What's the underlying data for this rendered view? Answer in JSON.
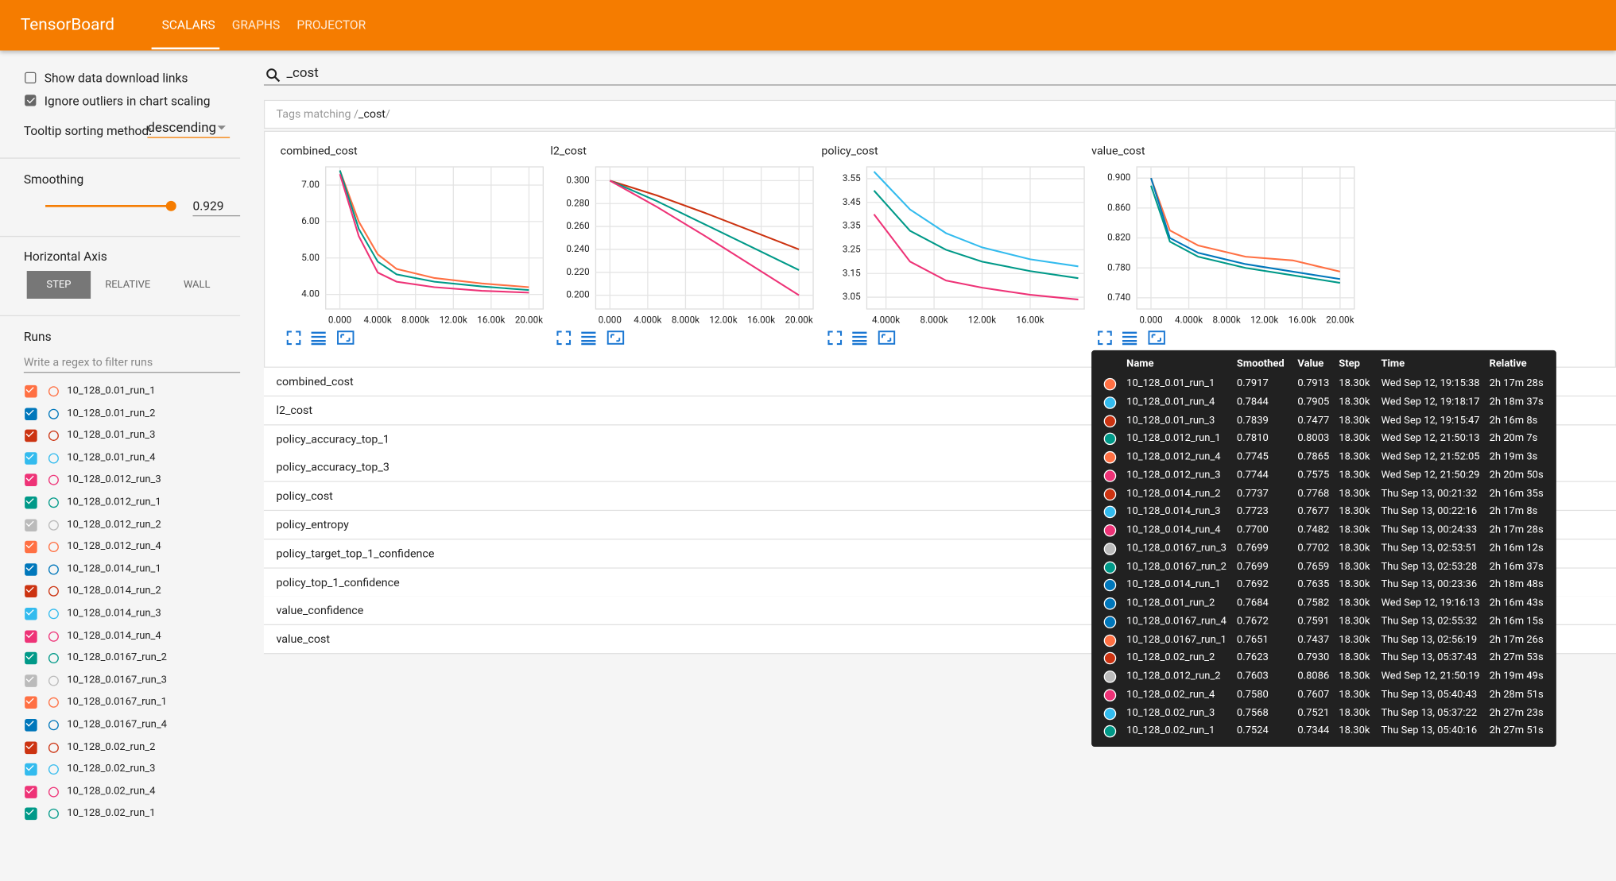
{
  "header": {
    "title": "TensorBoard",
    "tabs": [
      "SCALARS",
      "GRAPHS",
      "PROJECTOR"
    ]
  },
  "sidebar": {
    "checkboxes": [
      {
        "label": "Show data download links",
        "checked": false
      },
      {
        "label": "Ignore outliers in chart scaling",
        "checked": true
      }
    ],
    "tooltip_sorting_label": "Tooltip sorting method:",
    "tooltip_sorting_value": "descending",
    "smoothing_label": "Smoothing",
    "smoothing_value": 0.929,
    "horizontal_axis_label": "Horizontal Axis",
    "horizontal_axis_options": [
      "STEP",
      "RELATIVE",
      "WALL"
    ],
    "runs_label": "Runs",
    "runs_filter_placeholder": "Write a regex to filter runs",
    "runs": [
      {
        "name": "10_128_0.01_run_1",
        "color": "#ff7043"
      },
      {
        "name": "10_128_0.01_run_2",
        "color": "#0077bb"
      },
      {
        "name": "10_128_0.01_run_3",
        "color": "#cc3311"
      },
      {
        "name": "10_128_0.01_run_4",
        "color": "#33bbee"
      },
      {
        "name": "10_128_0.012_run_3",
        "color": "#ee3377"
      },
      {
        "name": "10_128_0.012_run_1",
        "color": "#009988"
      },
      {
        "name": "10_128_0.012_run_2",
        "color": "#bbbbbb"
      },
      {
        "name": "10_128_0.012_run_4",
        "color": "#ff7043"
      },
      {
        "name": "10_128_0.014_run_1",
        "color": "#0077bb"
      },
      {
        "name": "10_128_0.014_run_2",
        "color": "#cc3311"
      },
      {
        "name": "10_128_0.014_run_3",
        "color": "#33bbee"
      },
      {
        "name": "10_128_0.014_run_4",
        "color": "#ee3377"
      },
      {
        "name": "10_128_0.0167_run_2",
        "color": "#009988"
      },
      {
        "name": "10_128_0.0167_run_3",
        "color": "#bbbbbb"
      },
      {
        "name": "10_128_0.0167_run_1",
        "color": "#ff7043"
      },
      {
        "name": "10_128_0.0167_run_4",
        "color": "#0077bb"
      },
      {
        "name": "10_128_0.02_run_2",
        "color": "#cc3311"
      },
      {
        "name": "10_128_0.02_run_3",
        "color": "#33bbee"
      },
      {
        "name": "10_128_0.02_run_4",
        "color": "#ee3377"
      },
      {
        "name": "10_128_0.02_run_1",
        "color": "#009988"
      }
    ]
  },
  "search": {
    "query": "_cost"
  },
  "tags_matching": {
    "prefix": "Tags matching /",
    "query": "_cost",
    "suffix": "/"
  },
  "charts": [
    {
      "title": "combined_cost",
      "xlim": [
        -1500,
        21500
      ],
      "ylim": [
        3.6,
        7.5
      ],
      "xticks": [
        {
          "value": 0,
          "label": "0.000"
        },
        {
          "value": 4000,
          "label": "4.000k"
        },
        {
          "value": 8000,
          "label": "8.000k"
        },
        {
          "value": 12000,
          "label": "12.00k"
        },
        {
          "value": 16000,
          "label": "16.00k"
        },
        {
          "value": 20000,
          "label": "20.00k"
        }
      ],
      "yticks": [
        {
          "value": 4,
          "label": "4.00"
        },
        {
          "value": 5,
          "label": "5.00"
        },
        {
          "value": 6,
          "label": "6.00"
        },
        {
          "value": 7,
          "label": "7.00"
        }
      ],
      "series": [
        {
          "name": "10_128_0.01_run_1",
          "color": "#ff7043",
          "x": [
            0,
            2000,
            4000,
            6000,
            10000,
            15000,
            20000
          ],
          "values": [
            7.4,
            6.0,
            5.1,
            4.7,
            4.45,
            4.3,
            4.2
          ]
        },
        {
          "name": "10_128_0.012_run_1",
          "color": "#009988",
          "x": [
            0,
            2000,
            4000,
            6000,
            10000,
            15000,
            20000
          ],
          "values": [
            7.4,
            5.8,
            4.9,
            4.55,
            4.35,
            4.22,
            4.12
          ]
        },
        {
          "name": "10_128_0.014_run_4",
          "color": "#ee3377",
          "x": [
            0,
            2000,
            4000,
            6000,
            10000,
            15000,
            20000
          ],
          "values": [
            7.3,
            5.6,
            4.6,
            4.35,
            4.2,
            4.1,
            4.05
          ]
        }
      ]
    },
    {
      "title": "l2_cost",
      "xlim": [
        -1500,
        21500
      ],
      "ylim": [
        0.188,
        0.312
      ],
      "xticks": [
        {
          "value": 0,
          "label": "0.000"
        },
        {
          "value": 4000,
          "label": "4.000k"
        },
        {
          "value": 8000,
          "label": "8.000k"
        },
        {
          "value": 12000,
          "label": "12.00k"
        },
        {
          "value": 16000,
          "label": "16.00k"
        },
        {
          "value": 20000,
          "label": "20.00k"
        }
      ],
      "yticks": [
        {
          "value": 0.2,
          "label": "0.200"
        },
        {
          "value": 0.22,
          "label": "0.220"
        },
        {
          "value": 0.24,
          "label": "0.240"
        },
        {
          "value": 0.26,
          "label": "0.260"
        },
        {
          "value": 0.28,
          "label": "0.280"
        },
        {
          "value": 0.3,
          "label": "0.300"
        }
      ],
      "series": [
        {
          "name": "10_128_0.01_run_3",
          "color": "#cc3311",
          "x": [
            0,
            5000,
            10000,
            15000,
            20000
          ],
          "values": [
            0.3,
            0.287,
            0.272,
            0.256,
            0.24
          ]
        },
        {
          "name": "10_128_0.012_run_1",
          "color": "#009988",
          "x": [
            0,
            5000,
            10000,
            15000,
            20000
          ],
          "values": [
            0.3,
            0.282,
            0.262,
            0.242,
            0.222
          ]
        },
        {
          "name": "10_128_0.02_run_4",
          "color": "#ee3377",
          "x": [
            0,
            5000,
            10000,
            15000,
            20000
          ],
          "values": [
            0.3,
            0.277,
            0.252,
            0.226,
            0.2
          ]
        }
      ]
    },
    {
      "title": "policy_cost",
      "xlim": [
        2400,
        20500
      ],
      "ylim": [
        3.0,
        3.6
      ],
      "xticks": [
        {
          "value": 4000,
          "label": "4.000k"
        },
        {
          "value": 8000,
          "label": "8.000k"
        },
        {
          "value": 12000,
          "label": "12.00k"
        },
        {
          "value": 16000,
          "label": "16.00k"
        }
      ],
      "yticks": [
        {
          "value": 3.05,
          "label": "3.05"
        },
        {
          "value": 3.15,
          "label": "3.15"
        },
        {
          "value": 3.25,
          "label": "3.25"
        },
        {
          "value": 3.35,
          "label": "3.35"
        },
        {
          "value": 3.45,
          "label": "3.45"
        },
        {
          "value": 3.55,
          "label": "3.55"
        }
      ],
      "series": [
        {
          "name": "10_128_0.01_run_4",
          "color": "#33bbee",
          "x": [
            3000,
            6000,
            9000,
            12000,
            16000,
            20000
          ],
          "values": [
            3.58,
            3.42,
            3.32,
            3.26,
            3.21,
            3.18
          ]
        },
        {
          "name": "10_128_0.012_run_1",
          "color": "#009988",
          "x": [
            3000,
            6000,
            9000,
            12000,
            16000,
            20000
          ],
          "values": [
            3.5,
            3.33,
            3.25,
            3.2,
            3.16,
            3.13
          ]
        },
        {
          "name": "10_128_0.012_run_3",
          "color": "#ee3377",
          "x": [
            3000,
            6000,
            9000,
            12000,
            16000,
            20000
          ],
          "values": [
            3.4,
            3.2,
            3.12,
            3.09,
            3.06,
            3.04
          ]
        }
      ]
    },
    {
      "title": "value_cost",
      "xlim": [
        -1500,
        21500
      ],
      "ylim": [
        0.725,
        0.915
      ],
      "xticks": [
        {
          "value": 0,
          "label": "0.000"
        },
        {
          "value": 4000,
          "label": "4.000k"
        },
        {
          "value": 8000,
          "label": "8.000k"
        },
        {
          "value": 12000,
          "label": "12.00k"
        },
        {
          "value": 16000,
          "label": "16.00k"
        },
        {
          "value": 20000,
          "label": "20.00k"
        }
      ],
      "yticks": [
        {
          "value": 0.74,
          "label": "0.740"
        },
        {
          "value": 0.78,
          "label": "0.780"
        },
        {
          "value": 0.82,
          "label": "0.820"
        },
        {
          "value": 0.86,
          "label": "0.860"
        },
        {
          "value": 0.9,
          "label": "0.900"
        }
      ],
      "series": [
        {
          "name": "10_128_0.01_run_1",
          "color": "#ff7043",
          "x": [
            0,
            2000,
            5000,
            10000,
            15000,
            20000
          ],
          "values": [
            0.9,
            0.83,
            0.81,
            0.795,
            0.79,
            0.775
          ]
        },
        {
          "name": "10_128_0.014_run_1",
          "color": "#0077bb",
          "x": [
            0,
            2000,
            5000,
            10000,
            15000,
            20000
          ],
          "values": [
            0.9,
            0.82,
            0.8,
            0.785,
            0.775,
            0.765
          ]
        },
        {
          "name": "10_128_0.0167_run_2",
          "color": "#009988",
          "x": [
            0,
            2000,
            5000,
            10000,
            15000,
            20000
          ],
          "values": [
            0.89,
            0.815,
            0.795,
            0.78,
            0.77,
            0.76
          ]
        }
      ]
    }
  ],
  "tag_groups": [
    "combined_cost",
    "l2_cost",
    "policy_accuracy_top_1",
    "policy_accuracy_top_3",
    "policy_cost",
    "policy_entropy",
    "policy_target_top_1_confidence",
    "policy_top_1_confidence",
    "value_confidence",
    "value_cost"
  ],
  "tooltip": {
    "columns": [
      "Name",
      "Smoothed",
      "Value",
      "Step",
      "Time",
      "Relative"
    ],
    "rows": [
      [
        "10_128_0.01_run_1",
        "0.7917",
        "0.7913",
        "18.30k",
        "Wed Sep 12, 19:15:38",
        "2h 17m 28s"
      ],
      [
        "10_128_0.01_run_4",
        "0.7844",
        "0.7905",
        "18.30k",
        "Wed Sep 12, 19:18:17",
        "2h 18m 37s"
      ],
      [
        "10_128_0.01_run_3",
        "0.7839",
        "0.7477",
        "18.30k",
        "Wed Sep 12, 19:15:47",
        "2h 16m 8s"
      ],
      [
        "10_128_0.012_run_1",
        "0.7810",
        "0.8003",
        "18.30k",
        "Wed Sep 12, 21:50:13",
        "2h 20m 7s"
      ],
      [
        "10_128_0.012_run_4",
        "0.7745",
        "0.7865",
        "18.30k",
        "Wed Sep 12, 21:52:05",
        "2h 19m 3s"
      ],
      [
        "10_128_0.012_run_3",
        "0.7744",
        "0.7575",
        "18.30k",
        "Wed Sep 12, 21:50:29",
        "2h 20m 50s"
      ],
      [
        "10_128_0.014_run_2",
        "0.7737",
        "0.7768",
        "18.30k",
        "Thu Sep 13, 00:21:32",
        "2h 16m 35s"
      ],
      [
        "10_128_0.014_run_3",
        "0.7723",
        "0.7677",
        "18.30k",
        "Thu Sep 13, 00:22:16",
        "2h 17m 8s"
      ],
      [
        "10_128_0.014_run_4",
        "0.7700",
        "0.7482",
        "18.30k",
        "Thu Sep 13, 00:24:33",
        "2h 17m 28s"
      ],
      [
        "10_128_0.0167_run_3",
        "0.7699",
        "0.7702",
        "18.30k",
        "Thu Sep 13, 02:53:51",
        "2h 16m 12s"
      ],
      [
        "10_128_0.0167_run_2",
        "0.7699",
        "0.7659",
        "18.30k",
        "Thu Sep 13, 02:53:28",
        "2h 16m 37s"
      ],
      [
        "10_128_0.014_run_1",
        "0.7692",
        "0.7635",
        "18.30k",
        "Thu Sep 13, 00:23:36",
        "2h 18m 48s"
      ],
      [
        "10_128_0.01_run_2",
        "0.7684",
        "0.7582",
        "18.30k",
        "Wed Sep 12, 19:16:13",
        "2h 16m 43s"
      ],
      [
        "10_128_0.0167_run_4",
        "0.7672",
        "0.7591",
        "18.30k",
        "Thu Sep 13, 02:55:32",
        "2h 16m 15s"
      ],
      [
        "10_128_0.0167_run_1",
        "0.7651",
        "0.7437",
        "18.30k",
        "Thu Sep 13, 02:56:19",
        "2h 17m 26s"
      ],
      [
        "10_128_0.02_run_2",
        "0.7623",
        "0.7930",
        "18.30k",
        "Thu Sep 13, 05:37:43",
        "2h 27m 53s"
      ],
      [
        "10_128_0.012_run_2",
        "0.7603",
        "0.8086",
        "18.30k",
        "Wed Sep 12, 21:50:19",
        "2h 19m 49s"
      ],
      [
        "10_128_0.02_run_4",
        "0.7580",
        "0.7607",
        "18.30k",
        "Thu Sep 13, 05:40:43",
        "2h 28m 51s"
      ],
      [
        "10_128_0.02_run_3",
        "0.7568",
        "0.7521",
        "18.30k",
        "Thu Sep 13, 05:37:22",
        "2h 27m 23s"
      ],
      [
        "10_128_0.02_run_1",
        "0.7524",
        "0.7344",
        "18.30k",
        "Thu Sep 13, 05:40:16",
        "2h 27m 51s"
      ]
    ]
  }
}
